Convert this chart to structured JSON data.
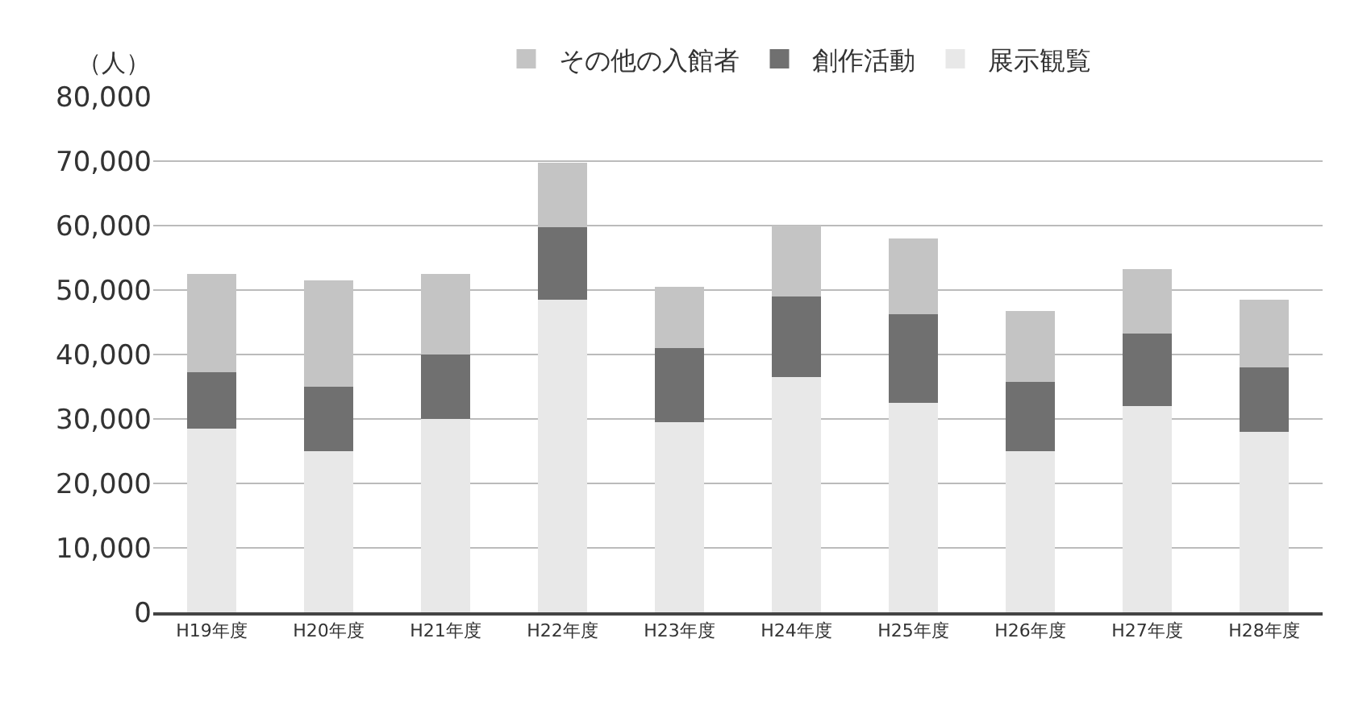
{
  "chart_data": {
    "type": "bar",
    "stacked": true,
    "ylabel": "（人）",
    "categories": [
      "H19年度",
      "H20年度",
      "H21年度",
      "H22年度",
      "H23年度",
      "H24年度",
      "H25年度",
      "H26年度",
      "H27年度",
      "H28年度"
    ],
    "series": [
      {
        "name": "展示観覧",
        "color": "#e8e8e8",
        "values": [
          28500,
          25000,
          30000,
          48500,
          29500,
          36500,
          32500,
          25000,
          32000,
          28000
        ]
      },
      {
        "name": "創作活動",
        "color": "#707070",
        "values": [
          8700,
          10000,
          10000,
          11300,
          11500,
          12500,
          13800,
          10700,
          11300,
          10000
        ]
      },
      {
        "name": "その他の入館者",
        "color": "#c4c4c4",
        "values": [
          15300,
          16500,
          12500,
          10000,
          9500,
          11000,
          11700,
          11000,
          10000,
          10500
        ]
      }
    ],
    "ylim": [
      0,
      80000
    ],
    "yticks": [
      {
        "value": 0,
        "label": "0"
      },
      {
        "value": 10000,
        "label": "10,000"
      },
      {
        "value": 20000,
        "label": "20,000"
      },
      {
        "value": 30000,
        "label": "30,000"
      },
      {
        "value": 40000,
        "label": "40,000"
      },
      {
        "value": 50000,
        "label": "50,000"
      },
      {
        "value": 60000,
        "label": "60,000"
      },
      {
        "value": 70000,
        "label": "70,000"
      },
      {
        "value": 80000,
        "label": "80,000"
      }
    ],
    "grid": "y",
    "legend": "top"
  }
}
